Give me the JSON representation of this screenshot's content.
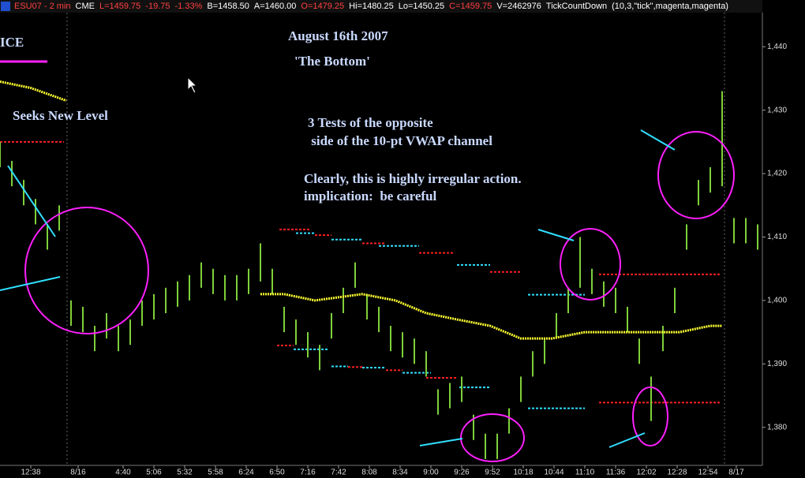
{
  "header": [
    {
      "text": "ESU07 - 2 min",
      "color": "#ff4040"
    },
    {
      "text": "CME",
      "color": "#ffffff"
    },
    {
      "text": "L=1459.75",
      "color": "#ff4040"
    },
    {
      "text": "-19.75",
      "color": "#ff4040"
    },
    {
      "text": "-1.33%",
      "color": "#ff4040"
    },
    {
      "text": "B=1458.50",
      "color": "#ffffff"
    },
    {
      "text": "A=1460.00",
      "color": "#ffffff"
    },
    {
      "text": "O=1479.25",
      "color": "#ff4040"
    },
    {
      "text": "Hi=1480.25",
      "color": "#ffffff"
    },
    {
      "text": "Lo=1450.25",
      "color": "#ffffff"
    },
    {
      "text": "C=1459.75",
      "color": "#ff4040"
    },
    {
      "text": "V=2462976",
      "color": "#ffffff"
    },
    {
      "text": "TickCountDown",
      "color": "#ffffff"
    },
    {
      "text": "(10,3,\"tick\",magenta,magenta)",
      "color": "#ffffff"
    }
  ],
  "chart_data": {
    "type": "ohlc",
    "annotations": [
      "ICE",
      "August 16th 2007",
      "'The Bottom'",
      "Seeks New Level",
      "3 Tests of the opposite",
      " side of the 10-pt VWAP channel",
      "Clearly, this is highly irregular action.",
      "implication:  be careful"
    ],
    "xlim": [
      0,
      322
    ],
    "xticks": [
      {
        "value": 13,
        "label": "12:38"
      },
      {
        "value": 33,
        "label": "8/16"
      },
      {
        "value": 52,
        "label": "4:40"
      },
      {
        "value": 65,
        "label": "5:06"
      },
      {
        "value": 78,
        "label": "5:32"
      },
      {
        "value": 91,
        "label": "5:58"
      },
      {
        "value": 104,
        "label": "6:24"
      },
      {
        "value": 117,
        "label": "6:50"
      },
      {
        "value": 130,
        "label": "7:16"
      },
      {
        "value": 143,
        "label": "7:42"
      },
      {
        "value": 156,
        "label": "8:08"
      },
      {
        "value": 169,
        "label": "8:34"
      },
      {
        "value": 182,
        "label": "9:00"
      },
      {
        "value": 195,
        "label": "9:26"
      },
      {
        "value": 208,
        "label": "9:52"
      },
      {
        "value": 221,
        "label": "10:18"
      },
      {
        "value": 234,
        "label": "10:44"
      },
      {
        "value": 247,
        "label": "11:10"
      },
      {
        "value": 260,
        "label": "11:36"
      },
      {
        "value": 273,
        "label": "12:02"
      },
      {
        "value": 286,
        "label": "12:28"
      },
      {
        "value": 299,
        "label": "12:54"
      },
      {
        "value": 311,
        "label": "8/17"
      }
    ],
    "ylim": [
      1374,
      1445.5
    ],
    "yticks": [
      {
        "value": 1380,
        "label": "1,380"
      },
      {
        "value": 1390,
        "label": "1,390"
      },
      {
        "value": 1400,
        "label": "1,400"
      },
      {
        "value": 1410,
        "label": "1,410"
      },
      {
        "value": 1420,
        "label": "1,420"
      },
      {
        "value": 1430,
        "label": "1,430"
      },
      {
        "value": 1440,
        "label": "1,440"
      }
    ],
    "bar_color": "#7fd03a",
    "x": [
      0,
      5,
      10,
      15,
      20,
      25,
      30,
      35,
      40,
      45,
      50,
      55,
      60,
      65,
      70,
      75,
      80,
      85,
      90,
      95,
      100,
      105,
      110,
      115,
      120,
      125,
      130,
      135,
      140,
      145,
      150,
      155,
      160,
      165,
      170,
      175,
      180,
      185,
      190,
      195,
      200,
      205,
      210,
      215,
      220,
      225,
      230,
      235,
      240,
      245,
      250,
      255,
      260,
      265,
      270,
      275,
      280,
      285,
      290,
      295,
      300,
      305,
      310,
      315,
      320
    ],
    "high": [
      1425,
      1422,
      1419,
      1416,
      1412,
      1415,
      1400,
      1399,
      1396,
      1398,
      1396,
      1397,
      1400,
      1401,
      1402,
      1403,
      1404,
      1406,
      1405,
      1404,
      1404,
      1405,
      1409,
      1405,
      1399,
      1397,
      1395,
      1393,
      1398,
      1402,
      1406,
      1401,
      1399,
      1396,
      1395,
      1394,
      1392,
      1386,
      1387,
      1388,
      1382,
      1379,
      1379,
      1383,
      1388,
      1392,
      1394,
      1398,
      1402,
      1410,
      1405,
      1403,
      1402,
      1399,
      1394,
      1388,
      1396,
      1402,
      1412,
      1419,
      1421,
      1433,
      1413,
      1413,
      1412
    ],
    "low": [
      1421,
      1418,
      1415,
      1412,
      1408,
      1411,
      1396,
      1395,
      1392,
      1394,
      1392,
      1393,
      1396,
      1397,
      1398,
      1399,
      1400,
      1402,
      1401,
      1400,
      1400,
      1401,
      1403,
      1401,
      1395,
      1393,
      1391,
      1389,
      1394,
      1398,
      1402,
      1397,
      1395,
      1392,
      1391,
      1390,
      1388,
      1382,
      1383,
      1384,
      1378,
      1375,
      1375,
      1379,
      1384,
      1388,
      1390,
      1394,
      1398,
      1402,
      1401,
      1399,
      1398,
      1395,
      1390,
      1381,
      1392,
      1398,
      1408,
      1415,
      1417,
      1418,
      1409,
      1409,
      1408
    ],
    "vwap": {
      "color": "#ffff30",
      "x": [
        0,
        13,
        28,
        null,
        110,
        120,
        133,
        153,
        167,
        180,
        193,
        207,
        220,
        233,
        247,
        260,
        273,
        287,
        300,
        305
      ],
      "values": [
        1434.5,
        1433.5,
        1431.5,
        null,
        1401,
        1401,
        1400,
        1401,
        1400,
        1398,
        1397,
        1396,
        1394,
        1394,
        1395,
        1395,
        1395,
        1395,
        1396,
        1396
      ]
    },
    "channel": [
      {
        "x": [
          0,
          27
        ],
        "value": 1425,
        "color": "#ff2020"
      },
      {
        "x": [
          118,
          131
        ],
        "value": 1411.2,
        "color": "#ff2020"
      },
      {
        "x": [
          125,
          133
        ],
        "value": 1410.6,
        "color": "#30e0ff"
      },
      {
        "x": [
          133,
          140
        ],
        "value": 1410.3,
        "color": "#ff2020"
      },
      {
        "x": [
          140,
          153
        ],
        "value": 1409.6,
        "color": "#30e0ff"
      },
      {
        "x": [
          153,
          163
        ],
        "value": 1409,
        "color": "#ff2020"
      },
      {
        "x": [
          160,
          177
        ],
        "value": 1408.6,
        "color": "#30e0ff"
      },
      {
        "x": [
          177,
          192
        ],
        "value": 1407.5,
        "color": "#ff2020"
      },
      {
        "x": [
          193,
          207
        ],
        "value": 1405.6,
        "color": "#30e0ff"
      },
      {
        "x": [
          207,
          220
        ],
        "value": 1404.5,
        "color": "#ff2020"
      },
      {
        "x": [
          223,
          247
        ],
        "value": 1400.9,
        "color": "#30e0ff"
      },
      {
        "x": [
          253,
          304
        ],
        "value": 1404.1,
        "color": "#ff2020"
      },
      {
        "x": [
          117,
          124
        ],
        "value": 1392.9,
        "color": "#ff2020"
      },
      {
        "x": [
          124,
          139
        ],
        "value": 1392.3,
        "color": "#30e0ff"
      },
      {
        "x": [
          140,
          147
        ],
        "value": 1389.6,
        "color": "#30e0ff"
      },
      {
        "x": [
          147,
          153
        ],
        "value": 1389.5,
        "color": "#ff2020"
      },
      {
        "x": [
          153,
          163
        ],
        "value": 1389.4,
        "color": "#30e0ff"
      },
      {
        "x": [
          163,
          170
        ],
        "value": 1389,
        "color": "#ff2020"
      },
      {
        "x": [
          170,
          182
        ],
        "value": 1388.6,
        "color": "#30e0ff"
      },
      {
        "x": [
          180,
          193
        ],
        "value": 1387.8,
        "color": "#ff2020"
      },
      {
        "x": [
          194,
          207
        ],
        "value": 1386.3,
        "color": "#30e0ff"
      },
      {
        "x": [
          223,
          247
        ],
        "value": 1383,
        "color": "#30e0ff"
      },
      {
        "x": [
          253,
          304
        ],
        "value": 1383.9,
        "color": "#ff2020"
      }
    ]
  }
}
